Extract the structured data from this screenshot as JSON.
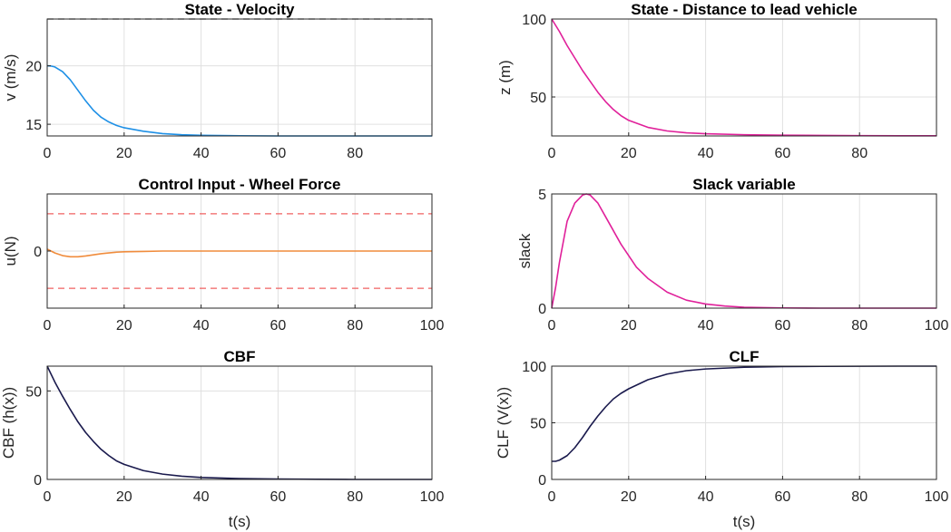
{
  "figure": {
    "background": "#ffffff",
    "grid": true
  },
  "chart_data": [
    {
      "id": "velocity",
      "type": "line",
      "title": "State - Velocity",
      "xlabel": "",
      "ylabel": "v (m/s)",
      "xlim": [
        0,
        100
      ],
      "ylim": [
        14,
        24
      ],
      "xticks": [
        "0",
        "20",
        "40",
        "60",
        "80"
      ],
      "yticks": [
        "15",
        "20"
      ],
      "series": [
        {
          "color": "#1e90e6",
          "dash": false,
          "x": [
            0,
            1,
            2,
            4,
            6,
            8,
            10,
            12,
            14,
            16,
            18,
            20,
            25,
            30,
            35,
            40,
            50,
            60,
            70,
            80,
            90,
            100
          ],
          "y": [
            20,
            19.98,
            19.9,
            19.5,
            18.8,
            17.9,
            17.0,
            16.2,
            15.6,
            15.2,
            14.9,
            14.7,
            14.4,
            14.2,
            14.1,
            14.05,
            14.02,
            14.0,
            14.0,
            14.0,
            14.0,
            14.0
          ]
        },
        {
          "color": "#333333",
          "dash": true,
          "x": [
            0,
            100
          ],
          "y": [
            24,
            24
          ]
        }
      ]
    },
    {
      "id": "distance",
      "type": "line",
      "title": "State - Distance to lead vehicle",
      "xlabel": "",
      "ylabel": "z (m)",
      "xlim": [
        0,
        100
      ],
      "ylim": [
        25,
        100
      ],
      "xticks": [
        "0",
        "20",
        "40",
        "60",
        "80"
      ],
      "yticks": [
        "50",
        "100"
      ],
      "series": [
        {
          "color": "#e0209a",
          "dash": false,
          "x": [
            0,
            2,
            4,
            6,
            8,
            10,
            12,
            14,
            16,
            18,
            20,
            25,
            30,
            35,
            40,
            50,
            60,
            70,
            80,
            90,
            100
          ],
          "y": [
            100,
            92,
            83,
            75,
            67,
            60,
            53,
            47,
            42,
            38,
            35,
            30.5,
            28.2,
            27,
            26.4,
            25.8,
            25.5,
            25.3,
            25.2,
            25.1,
            25.1
          ]
        }
      ]
    },
    {
      "id": "control",
      "type": "line",
      "title": "Control Input - Wheel Force",
      "xlabel": "",
      "ylabel": "u(N)",
      "xlim": [
        0,
        100
      ],
      "ylim": [
        -1.5,
        1.5
      ],
      "xticks": [
        "0",
        "20",
        "40",
        "60",
        "80",
        "100"
      ],
      "yticks": [
        "0"
      ],
      "series": [
        {
          "color": "#f08c3c",
          "dash": false,
          "x": [
            0,
            1,
            2,
            4,
            6,
            8,
            10,
            12,
            14,
            16,
            18,
            20,
            25,
            30,
            40,
            50,
            60,
            70,
            80,
            90,
            100
          ],
          "y": [
            0.05,
            0.0,
            -0.05,
            -0.12,
            -0.15,
            -0.15,
            -0.13,
            -0.1,
            -0.07,
            -0.05,
            -0.03,
            -0.02,
            -0.01,
            0,
            0,
            0,
            0,
            0,
            0,
            0,
            0
          ]
        },
        {
          "color": "#f06060",
          "dash": true,
          "x": [
            0,
            100
          ],
          "y": [
            0.98,
            0.98
          ]
        },
        {
          "color": "#f06060",
          "dash": true,
          "x": [
            0,
            100
          ],
          "y": [
            -0.98,
            -0.98
          ]
        }
      ]
    },
    {
      "id": "slack",
      "type": "line",
      "title": "Slack variable",
      "xlabel": "",
      "ylabel": "slack",
      "xlim": [
        0,
        100
      ],
      "ylim": [
        0,
        5
      ],
      "xticks": [
        "0",
        "20",
        "40",
        "60",
        "80",
        "100"
      ],
      "yticks": [
        "0",
        "5"
      ],
      "series": [
        {
          "color": "#e0209a",
          "dash": false,
          "x": [
            0,
            1,
            2,
            4,
            6,
            8,
            9,
            10,
            12,
            14,
            16,
            18,
            20,
            22,
            25,
            30,
            35,
            40,
            45,
            50,
            60,
            70,
            80,
            90,
            100
          ],
          "y": [
            0,
            0.9,
            2.0,
            3.8,
            4.6,
            4.95,
            5.0,
            4.95,
            4.6,
            4.0,
            3.4,
            2.8,
            2.3,
            1.8,
            1.3,
            0.7,
            0.35,
            0.18,
            0.09,
            0.04,
            0.01,
            0,
            0,
            0,
            0
          ]
        }
      ]
    },
    {
      "id": "cbf",
      "type": "line",
      "title": "CBF",
      "xlabel": "t(s)",
      "ylabel": "CBF (h(x))",
      "xlim": [
        0,
        100
      ],
      "ylim": [
        0,
        64
      ],
      "xticks": [
        "0",
        "20",
        "40",
        "60",
        "80",
        "100"
      ],
      "yticks": [
        "0",
        "50"
      ],
      "series": [
        {
          "color": "#1a1a4d",
          "dash": false,
          "x": [
            0,
            2,
            4,
            6,
            8,
            10,
            12,
            14,
            16,
            18,
            20,
            25,
            30,
            35,
            40,
            50,
            60,
            70,
            80,
            90,
            100
          ],
          "y": [
            64,
            55,
            47,
            39.5,
            32.5,
            26.5,
            21.5,
            17,
            13.5,
            10.5,
            8.5,
            5,
            3,
            1.8,
            1.1,
            0.5,
            0.2,
            0.1,
            0,
            0,
            0
          ]
        }
      ]
    },
    {
      "id": "clf",
      "type": "line",
      "title": "CLF",
      "xlabel": "t(s)",
      "ylabel": "CLF (V(x))",
      "xlim": [
        0,
        100
      ],
      "ylim": [
        0,
        100
      ],
      "xticks": [
        "0",
        "20",
        "40",
        "60",
        "80",
        "100"
      ],
      "yticks": [
        "0",
        "50",
        "100"
      ],
      "series": [
        {
          "color": "#1a1a4d",
          "dash": false,
          "x": [
            0,
            1,
            2,
            4,
            6,
            8,
            10,
            12,
            14,
            16,
            18,
            20,
            25,
            30,
            35,
            40,
            50,
            60,
            70,
            80,
            90,
            100
          ],
          "y": [
            16,
            16,
            17,
            21,
            28,
            37,
            47,
            56,
            64,
            71,
            76,
            80,
            88,
            93,
            96,
            97.5,
            99,
            99.6,
            99.8,
            99.9,
            100,
            100
          ]
        }
      ]
    }
  ]
}
